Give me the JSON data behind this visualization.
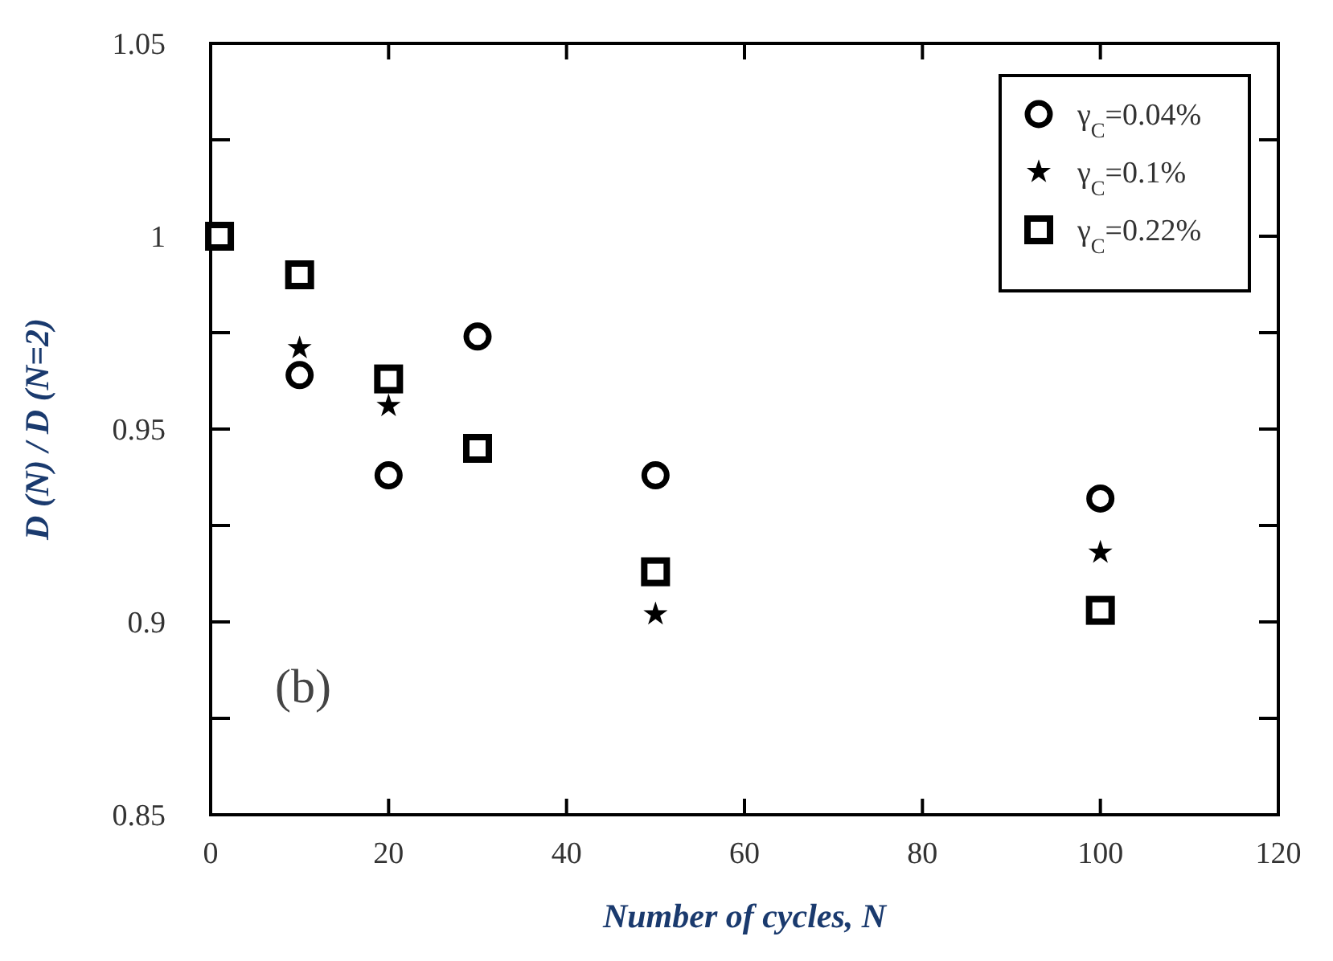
{
  "chart_data": {
    "type": "scatter",
    "xlabel": "Number of cycles, N",
    "ylabel": "D (N) / D (N=2)",
    "annotations": [
      "(b)"
    ],
    "xlim": [
      0,
      120
    ],
    "xticks": [
      0,
      20,
      40,
      60,
      80,
      100,
      120
    ],
    "ylim": [
      0.85,
      1.05
    ],
    "yticks": [
      0.85,
      {
        "value": 0.875,
        "label": null
      },
      0.9,
      {
        "value": 0.925,
        "label": null
      },
      0.95,
      {
        "value": 0.975,
        "label": null
      },
      1,
      {
        "value": 1.025,
        "label": null
      },
      1.05
    ],
    "x": [
      1,
      10,
      20,
      30,
      50,
      100
    ],
    "legend": "top right",
    "grid": false,
    "series": [
      {
        "name": "γ$_{C}$=0.04%",
        "color": "#000000",
        "marker": "circle",
        "values": [
          null,
          0.964,
          0.938,
          0.974,
          0.938,
          0.932
        ]
      },
      {
        "name": "γ$_{C}$=0.1%",
        "color": "#000000",
        "marker": "star",
        "values": [
          null,
          0.971,
          0.956,
          null,
          0.902,
          0.918
        ]
      },
      {
        "name": "γ$_{C}$=0.22%",
        "color": "#000000",
        "marker": "square",
        "values": [
          1,
          0.99,
          0.963,
          0.945,
          0.913,
          0.903
        ]
      }
    ]
  }
}
